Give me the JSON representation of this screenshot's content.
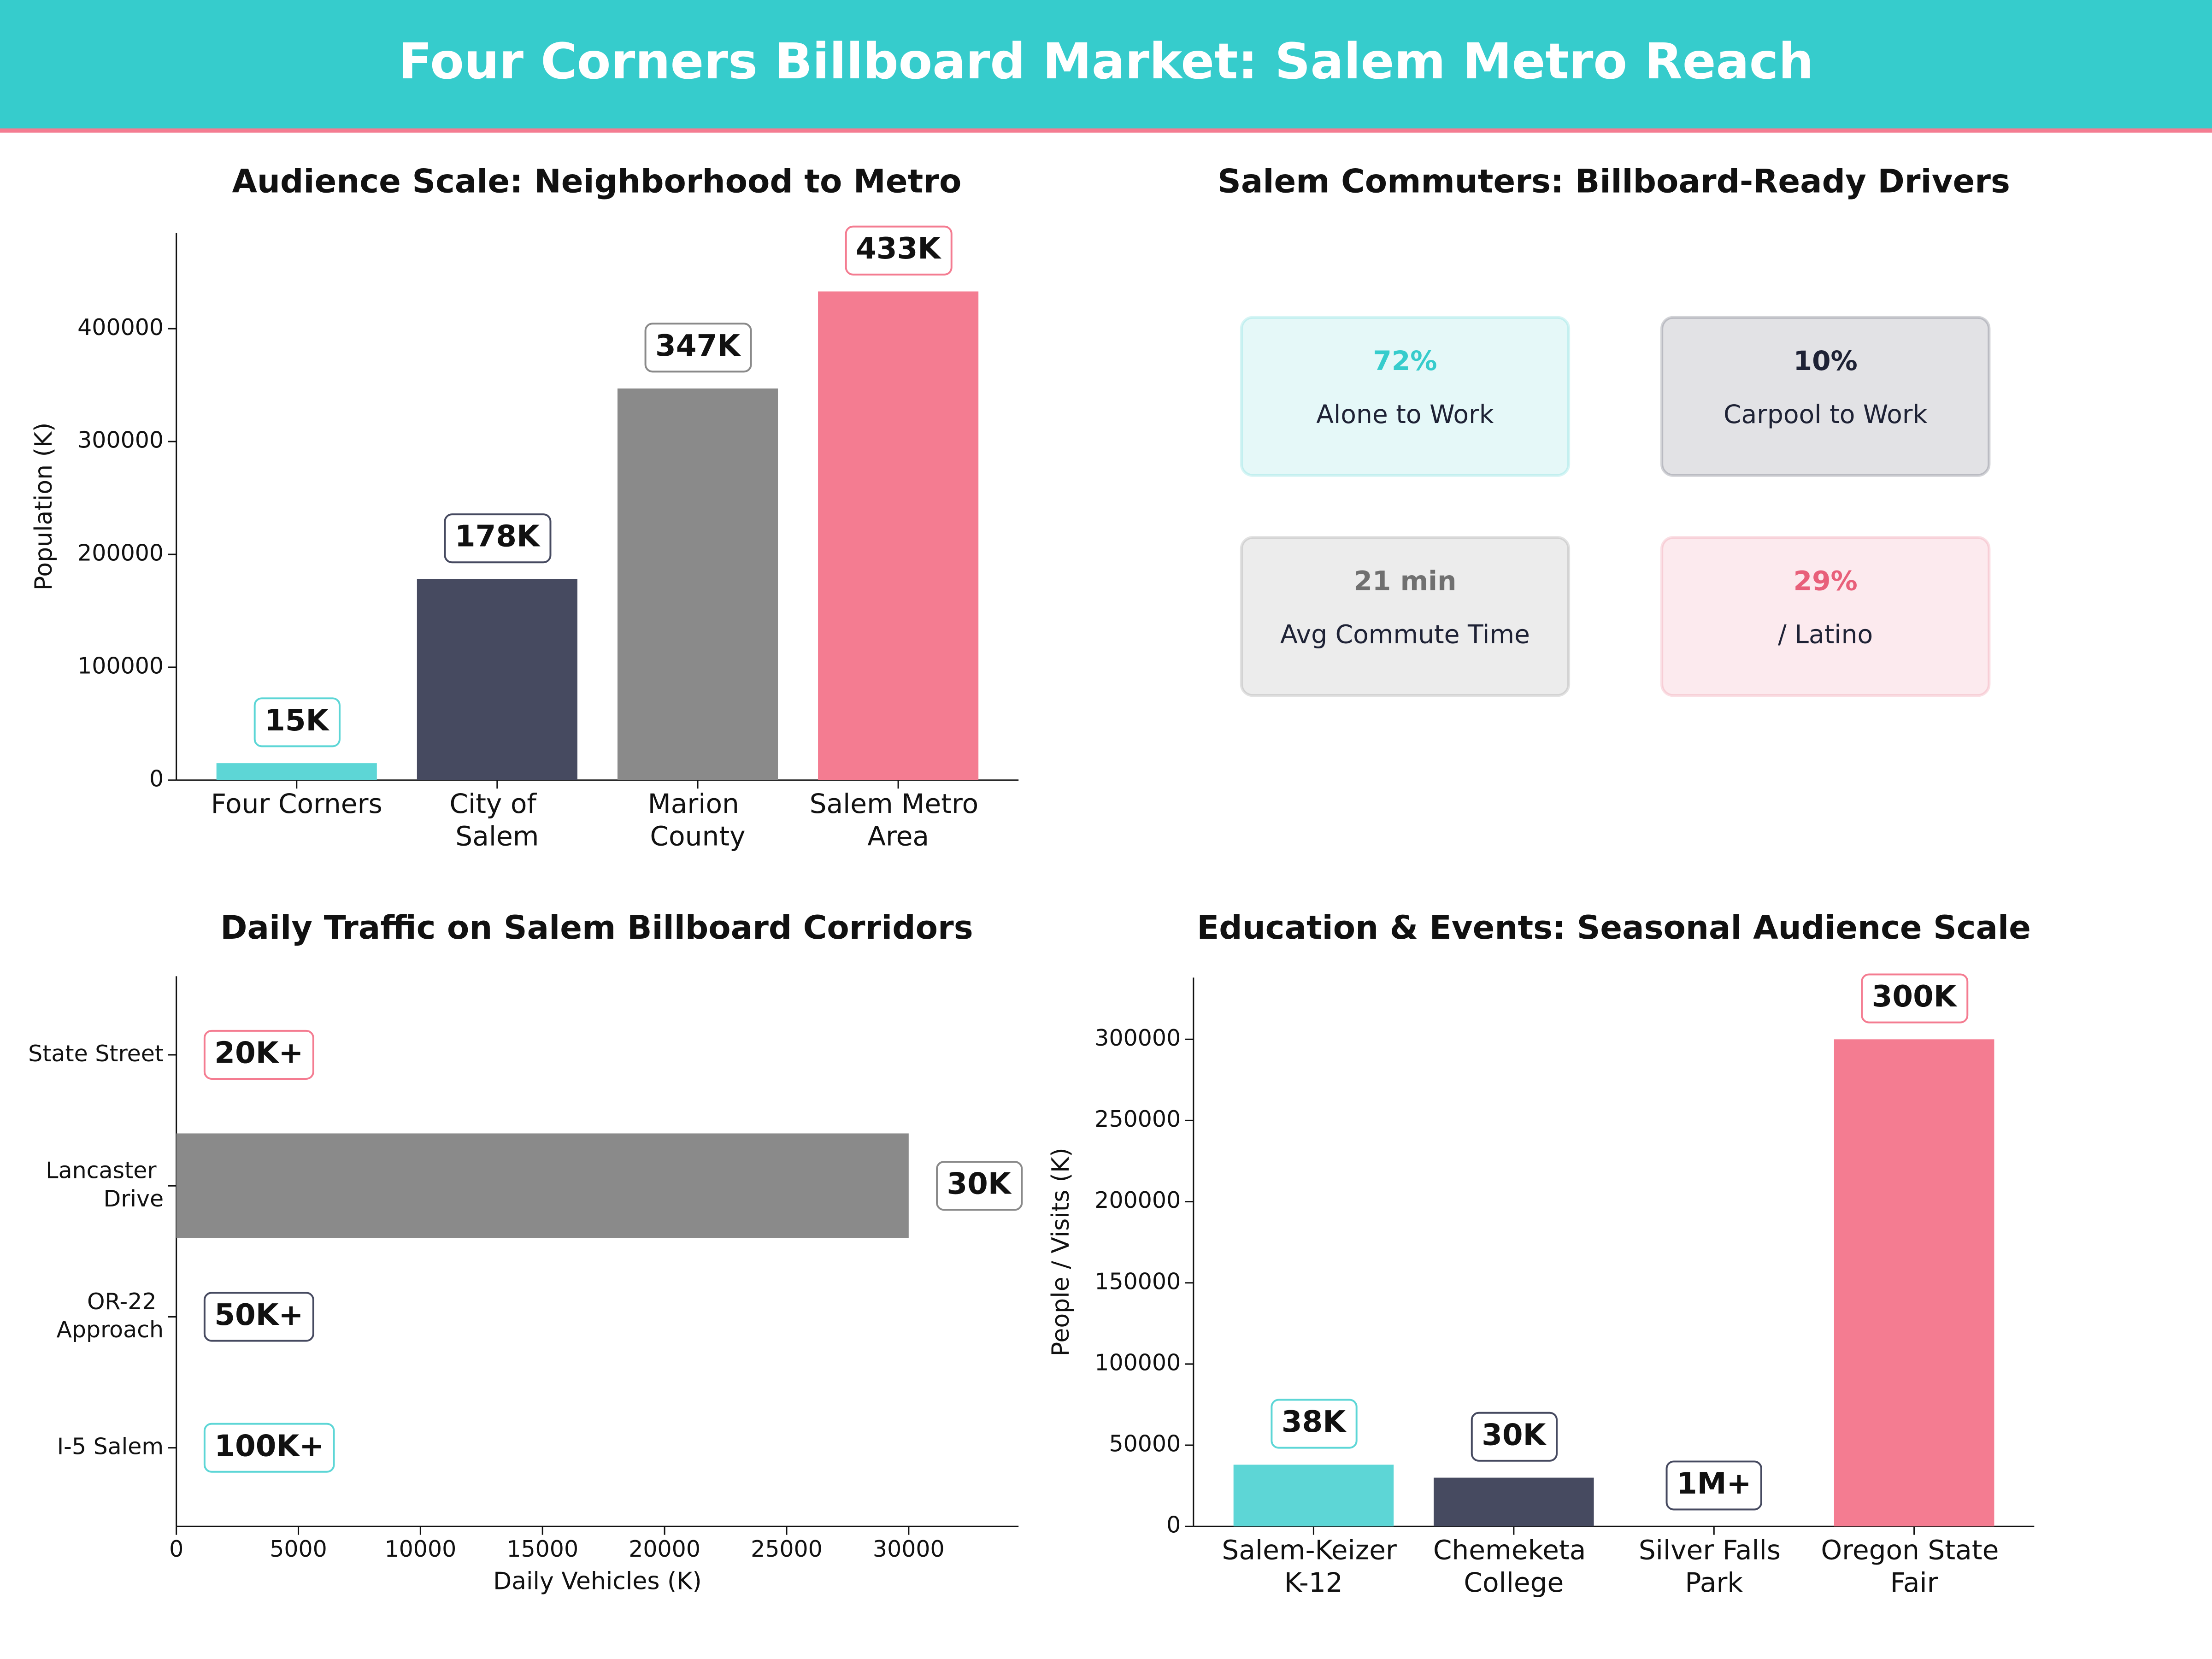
{
  "title": "Four Corners Billboard Market: Salem Metro Reach",
  "chart_data": [
    {
      "type": "bar",
      "title": "Audience Scale: Neighborhood to Metro",
      "ylabel": "Population (K)",
      "categories": [
        "Four Corners",
        "City of Salem",
        "Marion County",
        "Salem Metro Area"
      ],
      "values": [
        15000,
        178000,
        347000,
        433000
      ],
      "value_labels": [
        "15K",
        "178K",
        "347K",
        "433K"
      ],
      "colors": [
        "#5dd6d6",
        "#464a60",
        "#8a8a8a",
        "#f47c91"
      ],
      "ylim": [
        0,
        485000
      ],
      "yticks": [
        0,
        100000,
        200000,
        300000,
        400000
      ]
    },
    {
      "type": "cards",
      "title": "Salem Commuters: Billboard-Ready Drivers",
      "categories": [
        "Alone to Work",
        "Carpool to Work",
        "Avg Commute Time",
        "/ Latino"
      ],
      "values": [
        72,
        10,
        21,
        29
      ],
      "value_labels": [
        "72%",
        "10%",
        "21 min",
        "29%"
      ],
      "colors": [
        "#36cccc",
        "#1e2235",
        "#707070",
        "#e8607a"
      ]
    },
    {
      "type": "barh",
      "title": "Daily Traffic on Salem Billboard Corridors",
      "xlabel": "Daily Vehicles (K)",
      "categories": [
        "State Street",
        "Lancaster Drive",
        "OR-22 Approach",
        "I-5 Salem"
      ],
      "values": [
        null,
        30000,
        null,
        null
      ],
      "value_labels": [
        "20K+",
        "30K",
        "50K+",
        "100K+"
      ],
      "colors": [
        "#f47c91",
        "#8a8a8a",
        "#464a60",
        "#5dd6d6"
      ],
      "xlim": [
        0,
        34500
      ],
      "xticks": [
        0,
        5000,
        10000,
        15000,
        20000,
        25000,
        30000
      ]
    },
    {
      "type": "bar",
      "title": "Education & Events: Seasonal Audience Scale",
      "ylabel": "People / Visits (K)",
      "categories": [
        "Salem-Keizer K-12",
        "Chemeketa College",
        "Silver Falls Park",
        "Oregon State Fair"
      ],
      "values": [
        38000,
        30000,
        null,
        300000
      ],
      "value_labels": [
        "38K",
        "30K",
        "1M+",
        "300K"
      ],
      "colors": [
        "#5dd6d6",
        "#464a60",
        "#464a60",
        "#f47c91"
      ],
      "ylim": [
        0,
        338000
      ],
      "yticks": [
        0,
        50000,
        100000,
        150000,
        200000,
        250000,
        300000
      ]
    }
  ]
}
